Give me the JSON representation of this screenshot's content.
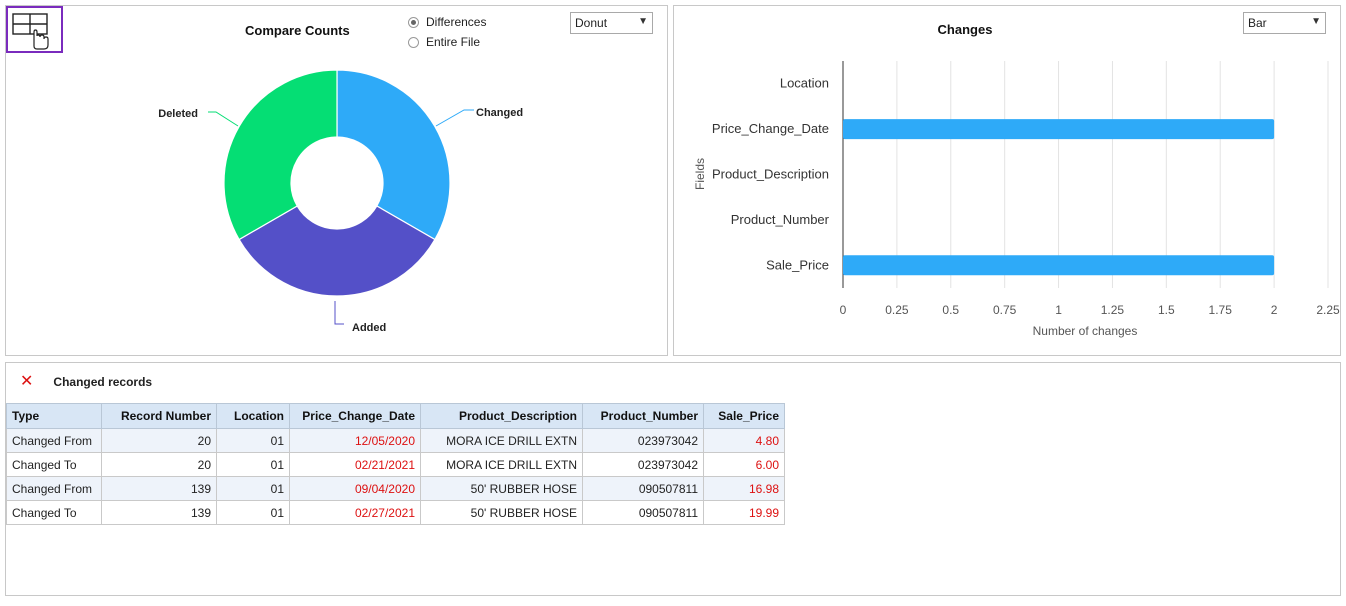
{
  "left_panel": {
    "title": "Compare Counts",
    "radio_options": [
      {
        "label": "Differences",
        "checked": true
      },
      {
        "label": "Entire File",
        "checked": false
      }
    ],
    "chart_type_select": "Donut"
  },
  "right_panel": {
    "chart_type_select": "Bar"
  },
  "chart_data": [
    {
      "type": "pie",
      "title": "Compare Counts",
      "categories": [
        "Changed",
        "Added",
        "Deleted"
      ],
      "values": [
        2,
        2,
        2
      ],
      "colors": [
        "#2eaaf8",
        "#5450c8",
        "#05de74"
      ]
    },
    {
      "type": "bar",
      "orientation": "horizontal",
      "title": "Changes",
      "categories": [
        "Location",
        "Price_Change_Date",
        "Product_Description",
        "Product_Number",
        "Sale_Price"
      ],
      "values": [
        0,
        2,
        0,
        0,
        2
      ],
      "xlabel": "Number of changes",
      "ylabel": "Fields",
      "xlim": [
        0,
        2.25
      ],
      "xticks": [
        "0",
        "0.25",
        "0.5",
        "0.75",
        "1",
        "1.25",
        "1.5",
        "1.75",
        "2",
        "2.25"
      ],
      "grid": true,
      "color": "#2eaaf8"
    }
  ],
  "changed_records": {
    "title": "Changed records",
    "columns": [
      "Type",
      "Record Number",
      "Location",
      "Price_Change_Date",
      "Product_Description",
      "Product_Number",
      "Sale_Price"
    ],
    "rows": [
      [
        "Changed From",
        "20",
        "01",
        "12/05/2020",
        "MORA ICE DRILL EXTN",
        "023973042",
        "4.80"
      ],
      [
        "Changed To",
        "20",
        "01",
        "02/21/2021",
        "MORA ICE DRILL EXTN",
        "023973042",
        "6.00"
      ],
      [
        "Changed From",
        "139",
        "01",
        "09/04/2020",
        "50' RUBBER HOSE",
        "090507811",
        "16.98"
      ],
      [
        "Changed To",
        "139",
        "01",
        "02/27/2021",
        "50' RUBBER HOSE",
        "090507811",
        "19.99"
      ]
    ]
  }
}
